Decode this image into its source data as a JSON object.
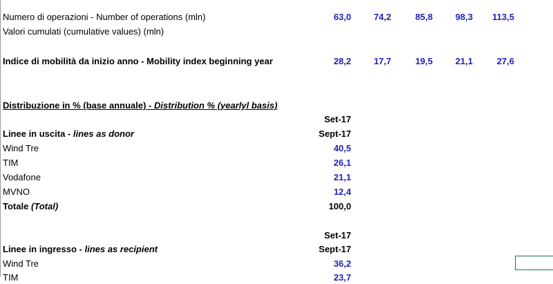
{
  "operations": {
    "label_line1": "Numero di operazioni - Number of operations (mln)",
    "label_line2": "Valori cumulati (cumulative values) (mln)",
    "values": [
      "63,0",
      "74,2",
      "85,8",
      "98,3",
      "113,5"
    ]
  },
  "mobility_index": {
    "label": "Indice di mobilità  da inizio anno - Mobility index beginning year",
    "values": [
      "28,2",
      "17,7",
      "19,5",
      "21,1",
      "27,6"
    ]
  },
  "distribution": {
    "title_main": "Distribuzione in % (base annuale) - ",
    "title_italic": "Distribution % (yearlyl basis)"
  },
  "donor": {
    "period_it": "Set-17",
    "period_en": "Sept-17",
    "label_main": "Linee in uscita  - ",
    "label_italic": "lines as donor",
    "rows": [
      {
        "name": "Wind Tre",
        "value": "40,5"
      },
      {
        "name": "TIM",
        "value": "26,1"
      },
      {
        "name": "Vodafone",
        "value": "21,1"
      },
      {
        "name": "MVNO",
        "value": "12,4"
      }
    ],
    "total_main": "Totale ",
    "total_italic": "(Total)",
    "total_value": "100,0"
  },
  "recipient": {
    "period_it": "Set-17",
    "period_en": "Sept-17",
    "label_main": "Linee in ingresso  - ",
    "label_italic": "lines as recipient",
    "rows": [
      {
        "name": "Wind Tre",
        "value": "36,2"
      },
      {
        "name": "TIM",
        "value": "23,7"
      }
    ]
  }
}
